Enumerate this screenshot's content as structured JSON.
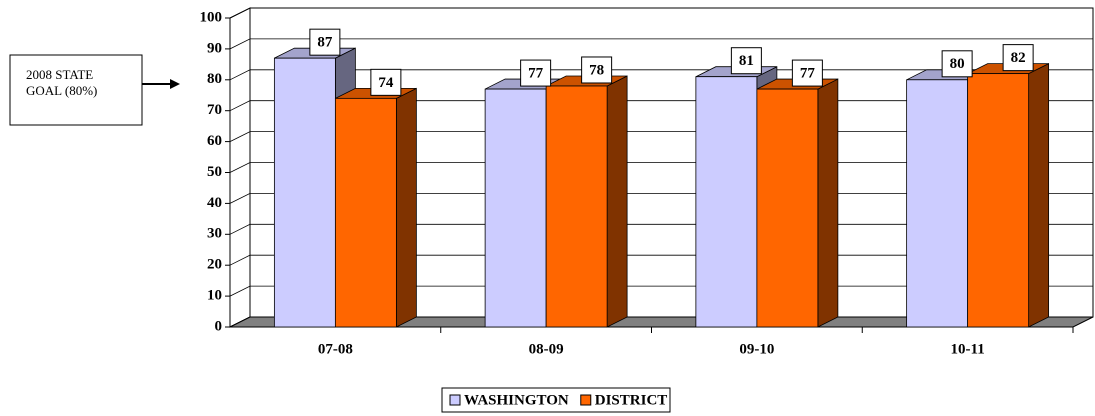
{
  "chart_data": {
    "type": "bar3d",
    "categories": [
      "07-08",
      "08-09",
      "09-10",
      "10-11"
    ],
    "series": [
      {
        "name": "WASHINGTON",
        "color": "#ccccff",
        "values": [
          87,
          77,
          81,
          80
        ]
      },
      {
        "name": "DISTRICT",
        "color": "#ff6600",
        "values": [
          74,
          78,
          77,
          82
        ]
      }
    ],
    "ylim": [
      0,
      100
    ],
    "yticks": [
      0,
      10,
      20,
      30,
      40,
      50,
      60,
      70,
      80,
      90,
      100
    ],
    "grid": true,
    "legend": "bottom",
    "annotation": [
      "2008 STATE",
      "GOAL (80%)"
    ]
  }
}
